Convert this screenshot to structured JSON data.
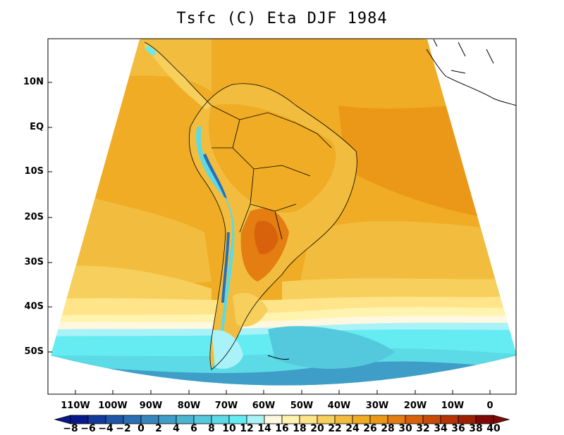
{
  "title": "Tsfc (C) Eta DJF 1984",
  "y_axis": {
    "ticks": [
      "10N",
      "EQ",
      "10S",
      "20S",
      "30S",
      "40S",
      "50S"
    ]
  },
  "x_axis": {
    "ticks": [
      "110W",
      "100W",
      "90W",
      "80W",
      "70W",
      "60W",
      "50W",
      "40W",
      "30W",
      "20W",
      "10W",
      "0"
    ]
  },
  "colorbar": {
    "labels": [
      "−8",
      "−6",
      "−4",
      "−2",
      "0",
      "2",
      "4",
      "6",
      "8",
      "10",
      "12",
      "14",
      "16",
      "18",
      "20",
      "22",
      "24",
      "26",
      "28",
      "30",
      "32",
      "34",
      "36",
      "38",
      "40"
    ],
    "colors": [
      "#08198c",
      "#123a9c",
      "#1e56a8",
      "#2a6fb4",
      "#3686be",
      "#3e9ec8",
      "#4ab4d2",
      "#54c8dc",
      "#5cdae6",
      "#64ecf2",
      "#a8f2f8",
      "#fff8e0",
      "#fff3b0",
      "#ffe48a",
      "#f6cf5c",
      "#f2bd3e",
      "#efac24",
      "#eb9818",
      "#e47d12",
      "#d8620c",
      "#c84c08",
      "#b63406",
      "#9c2004",
      "#800808"
    ]
  },
  "map": {
    "colors": {
      "ocean_warm": "#efac24",
      "ocean_mid": "#f2bd3e",
      "ocean_light": "#f6cf5c",
      "ocean_pale": "#ffe48a",
      "ocean_cool": "#fff3b0",
      "ocean_cream": "#fff8e0",
      "southern_cyan": "#64ecf2",
      "southern_blue": "#3e9ec8",
      "land_hot": "#d8620c",
      "land_warm": "#e47d12",
      "andes_cold": "#5cdae6",
      "andes_blue": "#2a6fb4",
      "hot_spot": "#eb9818"
    }
  }
}
